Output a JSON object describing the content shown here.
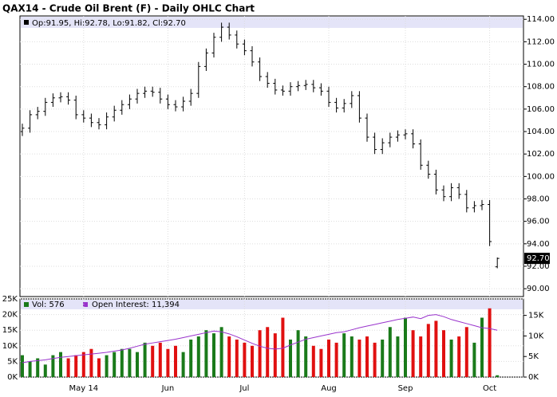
{
  "chart_data": {
    "type": "ohlc",
    "title": "QAX14 - Crude Oil Brent (F) - Daily OHLC Chart",
    "legend_text": "Op:91.95, Hi:92.78, Lo:91.82, Cl:92.70",
    "last_price_label": "92.70",
    "categories": [
      null,
      null,
      null,
      null,
      null,
      null,
      null,
      null,
      "May 14",
      null,
      null,
      null,
      null,
      null,
      null,
      null,
      null,
      null,
      null,
      "Jun",
      null,
      null,
      null,
      null,
      null,
      null,
      null,
      null,
      null,
      "Jul",
      null,
      null,
      null,
      null,
      null,
      null,
      null,
      null,
      null,
      null,
      "Aug",
      null,
      null,
      null,
      null,
      null,
      null,
      null,
      null,
      null,
      "Sep",
      null,
      null,
      null,
      null,
      null,
      null,
      null,
      null,
      null,
      null,
      "Oct",
      null
    ],
    "open": [
      104.0,
      104.3,
      105.5,
      105.8,
      106.6,
      107,
      107.1,
      106.8,
      105.5,
      105.2,
      104.8,
      104.6,
      105.3,
      105.9,
      106.4,
      106.9,
      107.4,
      107.6,
      107.5,
      106.9,
      106.4,
      106.2,
      106.7,
      107.4,
      109.8,
      111,
      112.4,
      113.3,
      112.6,
      111.8,
      111.2,
      110.2,
      108.9,
      108.3,
      107.7,
      107.6,
      108,
      108.1,
      108.2,
      107.9,
      107.6,
      106.6,
      106.1,
      106.5,
      107.2,
      105.2,
      103.5,
      102.4,
      103,
      103.5,
      103.7,
      103.8,
      102.9,
      101,
      100.2,
      98.8,
      98.2,
      99,
      98.4,
      97.2,
      97.4,
      97.5,
      91.95
    ],
    "high": [
      104.7,
      105.9,
      106.2,
      107.0,
      107.4,
      107.5,
      107.5,
      107.2,
      105.9,
      105.6,
      105.2,
      105.7,
      106.3,
      106.8,
      107.3,
      107.8,
      108.0,
      108.0,
      107.9,
      107.3,
      106.8,
      107.1,
      107.8,
      110.2,
      111.4,
      112.8,
      113.7,
      113.7,
      113.0,
      112.2,
      111.6,
      110.6,
      109.3,
      108.7,
      108.1,
      108.4,
      108.5,
      108.6,
      108.6,
      108.3,
      108.0,
      107.0,
      106.9,
      107.6,
      107.6,
      105.6,
      103.9,
      103.4,
      103.9,
      104.1,
      104.2,
      104.2,
      103.3,
      101.4,
      100.6,
      99.2,
      99.4,
      99.4,
      98.8,
      97.8,
      97.9,
      97.9,
      92.78
    ],
    "low": [
      103.6,
      103.9,
      105.1,
      105.4,
      106.2,
      106.6,
      106.4,
      105.1,
      104.8,
      104.4,
      104.2,
      104.2,
      104.9,
      105.5,
      106.0,
      106.5,
      107.0,
      107.1,
      106.5,
      106.0,
      105.8,
      105.8,
      106.3,
      107.0,
      109.4,
      110.6,
      112.0,
      112.2,
      111.4,
      110.8,
      109.8,
      108.5,
      107.9,
      107.3,
      107.2,
      107.2,
      107.6,
      107.7,
      107.5,
      107.2,
      106.2,
      105.7,
      105.7,
      106.1,
      104.8,
      103.1,
      102.0,
      102.0,
      102.6,
      103.1,
      103.3,
      102.5,
      100.6,
      99.8,
      98.4,
      97.8,
      97.8,
      98.0,
      96.8,
      96.8,
      97.0,
      93.8,
      91.82
    ],
    "close": [
      104.3,
      105.5,
      105.8,
      106.6,
      107,
      107.1,
      106.8,
      105.5,
      105.2,
      104.8,
      104.6,
      105.3,
      105.9,
      106.4,
      106.9,
      107.4,
      107.6,
      107.5,
      106.9,
      106.4,
      106.2,
      106.7,
      107.4,
      109.8,
      111,
      112.4,
      113.3,
      112.6,
      111.8,
      111.2,
      110.2,
      108.9,
      108.3,
      107.7,
      107.6,
      108,
      108.1,
      108.2,
      107.9,
      107.6,
      106.6,
      106.1,
      106.5,
      107.2,
      105.2,
      103.5,
      102.4,
      103,
      103.5,
      103.7,
      103.8,
      102.9,
      101,
      100.2,
      98.8,
      98.2,
      99,
      98.4,
      97.2,
      97.4,
      97.5,
      94.2,
      92.7
    ],
    "color": "#000000",
    "ylim": [
      89.3,
      114.3
    ],
    "yticks": [
      {
        "value": 114,
        "label": "114.00"
      },
      {
        "value": 112,
        "label": "112.00"
      },
      {
        "value": 110,
        "label": "110.00"
      },
      {
        "value": 108,
        "label": "108.00"
      },
      {
        "value": 106,
        "label": "106.00"
      },
      {
        "value": 104,
        "label": "104.00"
      },
      {
        "value": 102,
        "label": "102.00"
      },
      {
        "value": 100,
        "label": "100.00"
      },
      {
        "value": 98,
        "label": "98.00"
      },
      {
        "value": 96,
        "label": "96.00"
      },
      {
        "value": 94,
        "label": "94.00"
      },
      {
        "value": 92,
        "label": "92.00"
      },
      {
        "value": 90,
        "label": "90.00"
      }
    ],
    "grid": true,
    "volume": {
      "legend_text": "Vol: 576",
      "up_color": "#1a7a1a",
      "down_color": "#e01010",
      "values": [
        7000,
        5000,
        6000,
        4000,
        7000,
        8000,
        6000,
        7000,
        8000,
        9000,
        6000,
        7000,
        8000,
        9000,
        9000,
        8000,
        11000,
        10000,
        11000,
        9000,
        10000,
        8000,
        12000,
        13000,
        15000,
        14000,
        16000,
        13000,
        12000,
        11000,
        10000,
        15000,
        16000,
        14000,
        19000,
        12000,
        15000,
        13000,
        10000,
        9000,
        12000,
        11000,
        14000,
        13000,
        12000,
        13000,
        11000,
        12000,
        16000,
        13000,
        19000,
        15000,
        13000,
        17000,
        18000,
        15000,
        12000,
        13000,
        16000,
        11000,
        19000,
        22000,
        576
      ],
      "ylim": [
        0,
        25000
      ],
      "yticks": [
        {
          "value": 0,
          "label": "0K"
        },
        {
          "value": 5000,
          "label": "5K"
        },
        {
          "value": 10000,
          "label": "10K"
        },
        {
          "value": 15000,
          "label": "15K"
        },
        {
          "value": 20000,
          "label": "20K"
        },
        {
          "value": 25000,
          "label": "25K"
        }
      ]
    },
    "open_interest": {
      "legend_text": "Open Interest: 11,394",
      "color": "#9933cc",
      "axis": "y2",
      "values": [
        3500,
        3800,
        4000,
        4200,
        4500,
        4800,
        5000,
        5200,
        5400,
        5600,
        5800,
        6000,
        6300,
        6600,
        7000,
        7500,
        8000,
        8300,
        8600,
        8900,
        9200,
        9600,
        10000,
        10400,
        10800,
        11200,
        11000,
        10500,
        9800,
        9000,
        8200,
        7500,
        7000,
        6800,
        7000,
        7800,
        8500,
        9200,
        9600,
        10000,
        10400,
        10800,
        11000,
        11500,
        12000,
        12400,
        12800,
        13200,
        13600,
        14000,
        14300,
        14600,
        14200,
        15000,
        15200,
        14700,
        14000,
        13500,
        13000,
        12500,
        12000,
        11800,
        11394
      ],
      "y2lim": [
        0,
        19000
      ],
      "y2ticks": [
        {
          "value": 0,
          "label": "0K"
        },
        {
          "value": 5000,
          "label": "5K"
        },
        {
          "value": 10000,
          "label": "10K"
        },
        {
          "value": 15000,
          "label": "15K"
        }
      ]
    }
  }
}
